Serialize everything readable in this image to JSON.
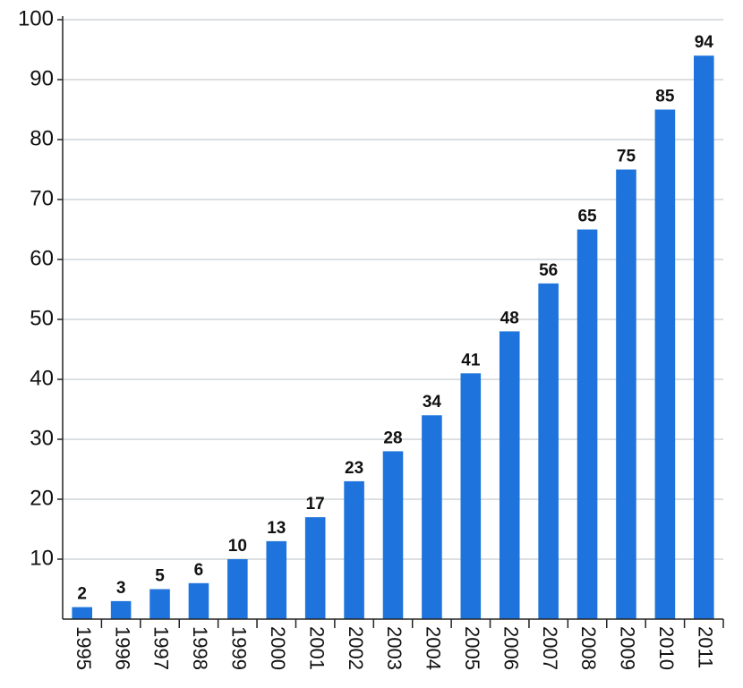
{
  "chart_data": {
    "type": "bar",
    "categories": [
      "1995",
      "1996",
      "1997",
      "1998",
      "1999",
      "2000",
      "2001",
      "2002",
      "2003",
      "2004",
      "2005",
      "2006",
      "2007",
      "2008",
      "2009",
      "2010",
      "2011"
    ],
    "values": [
      2,
      3,
      5,
      6,
      10,
      13,
      17,
      23,
      28,
      34,
      41,
      48,
      56,
      65,
      75,
      85,
      94
    ],
    "color": "#1e74dc",
    "ylim": [
      0,
      100
    ],
    "yticks": [
      10,
      20,
      30,
      40,
      50,
      60,
      70,
      80,
      90,
      100
    ],
    "grid": true
  }
}
